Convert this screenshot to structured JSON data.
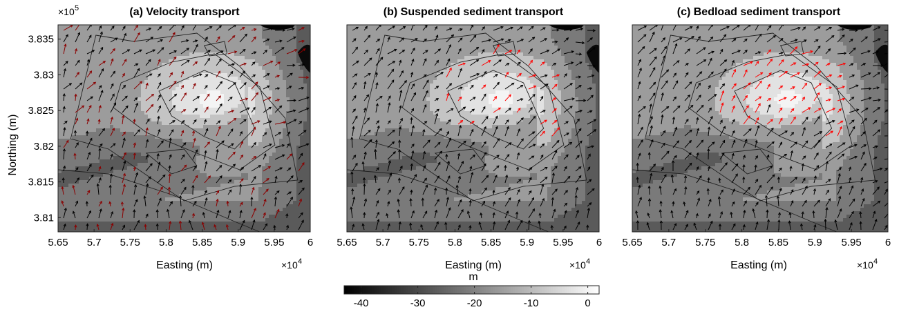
{
  "colorbar": {
    "label": "m",
    "ticks": [
      "-40",
      "-30",
      "-20",
      "-10",
      "0"
    ],
    "tick_values": [
      -40,
      -30,
      -20,
      -10,
      0
    ],
    "range": [
      -43,
      2
    ],
    "colormap": "gray"
  },
  "chart_data": [
    {
      "type": "contourf + quiver",
      "title": "(a) Velocity transport",
      "xlabel": "Easting (m)",
      "ylabel": "Northing (m)",
      "x_ticks": [
        "5.65",
        "5.7",
        "5.75",
        "5.8",
        "5.85",
        "5.9",
        "5.95",
        "6"
      ],
      "y_ticks": [
        "3.81",
        "3.815",
        "3.82",
        "3.825",
        "3.83",
        "3.835"
      ],
      "x_exponent": "×10",
      "x_exponent_power": "4",
      "y_exponent": "×10",
      "y_exponent_power": "5",
      "xlim": [
        56500,
        60000
      ],
      "ylim": [
        380800,
        383700
      ],
      "vector_colors": [
        "#000000",
        "#8b0000"
      ],
      "red_vector_fraction": 0.0
    },
    {
      "type": "contourf + quiver",
      "title": "(b) Suspended sediment transport",
      "xlabel": "Easting (m)",
      "x_ticks": [
        "5.65",
        "5.7",
        "5.75",
        "5.8",
        "5.85",
        "5.9",
        "5.95",
        "6"
      ],
      "x_exponent": "×10",
      "x_exponent_power": "4",
      "xlim": [
        56500,
        60000
      ],
      "ylim": [
        380800,
        383700
      ],
      "vector_colors": [
        "#000000",
        "#ff0000"
      ],
      "red_vector_fraction": 0.3
    },
    {
      "type": "contourf + quiver",
      "title": "(c) Bedload sediment transport",
      "xlabel": "Easting (m)",
      "x_ticks": [
        "5.65",
        "5.7",
        "5.75",
        "5.8",
        "5.85",
        "5.9",
        "5.95",
        "6"
      ],
      "x_exponent": "×10",
      "x_exponent_power": "4",
      "xlim": [
        56500,
        60000
      ],
      "ylim": [
        380800,
        383700
      ],
      "vector_colors": [
        "#000000",
        "#ff0000"
      ],
      "red_vector_fraction": 0.75
    }
  ]
}
